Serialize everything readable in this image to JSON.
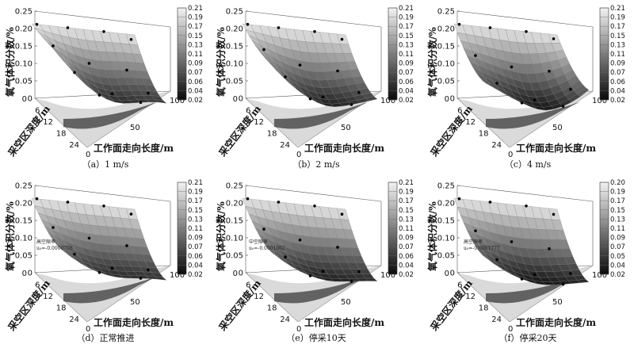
{
  "chart_data": [
    {
      "type": "surface3d",
      "caption": "（a）1 m/s",
      "zlabel": "氧气体积分数/%",
      "xlabel": "工作面走向长度/m",
      "ylabel": "采空区深度/m",
      "z_ticks": [
        "0",
        "0.05",
        "0.10",
        "0.15",
        "0.20",
        "0.25"
      ],
      "z_range": [
        0,
        0.25
      ],
      "x_ticks": [
        "0",
        "50",
        "100"
      ],
      "y_ticks": [
        "0",
        "6",
        "12",
        "18",
        "24"
      ],
      "colorbar_ticks": [
        "0.21",
        "0.19",
        "0.17",
        "0.15",
        "0.13",
        "0.11",
        "0.09",
        "0.07",
        "0.06",
        "0.04",
        "0.02"
      ],
      "annotation": [],
      "surface": {
        "z_near": 0.205,
        "z_far_left": 0.16,
        "z_min": 0.04,
        "z_far_right": 0.06
      }
    },
    {
      "type": "surface3d",
      "caption": "（b）2 m/s",
      "zlabel": "氧气体积分数/%",
      "xlabel": "工作面走向长度/m",
      "ylabel": "采空区深度/m",
      "z_ticks": [
        "0",
        "0.05",
        "0.10",
        "0.15",
        "0.20",
        "0.25"
      ],
      "z_range": [
        0,
        0.25
      ],
      "x_ticks": [
        "0",
        "50",
        "100"
      ],
      "y_ticks": [
        "0",
        "6",
        "12",
        "18",
        "24"
      ],
      "colorbar_ticks": [
        "0.21",
        "0.19",
        "0.17",
        "0.15",
        "0.13",
        "0.11",
        "0.09",
        "0.07",
        "0.06",
        "0.04",
        "0.02"
      ],
      "annotation": [],
      "surface": {
        "z_near": 0.205,
        "z_far_left": 0.13,
        "z_min": 0.03,
        "z_far_right": 0.08
      }
    },
    {
      "type": "surface3d",
      "caption": "（c）4 m/s",
      "zlabel": "氧气体积分数/%",
      "xlabel": "工作面走向长度/m",
      "ylabel": "采空区深度/m",
      "z_ticks": [
        "0",
        "0.05",
        "0.10",
        "0.15",
        "0.20",
        "0.25"
      ],
      "z_range": [
        0,
        0.25
      ],
      "x_ticks": [
        "0",
        "50",
        "100"
      ],
      "y_ticks": [
        "0",
        "6",
        "12",
        "18",
        "24"
      ],
      "colorbar_ticks": [
        "0.21",
        "0.19",
        "0.17",
        "0.15",
        "0.13",
        "0.11",
        "0.09",
        "0.07",
        "0.06",
        "0.04",
        "0.02"
      ],
      "annotation": [],
      "surface": {
        "z_near": 0.205,
        "z_far_left": 0.08,
        "z_min": 0.02,
        "z_far_right": 0.12
      }
    },
    {
      "type": "surface3d",
      "caption": "（d）正常推进",
      "zlabel": "氧气体积分数/%",
      "xlabel": "工作面走向长度/m",
      "ylabel": "采空区深度/m",
      "z_ticks": [
        "0",
        "0.05",
        "0.10",
        "0.15",
        "0.20",
        "0.25"
      ],
      "z_range": [
        0,
        0.25
      ],
      "x_ticks": [
        "0",
        "50",
        "100"
      ],
      "y_ticks": [
        "0",
        "6",
        "12",
        "18",
        "24"
      ],
      "colorbar_ticks": [
        "0.21",
        "0.19",
        "0.17",
        "0.15",
        "0.13",
        "0.11",
        "0.09",
        "0.07",
        "0.06",
        "0.04",
        "0.02"
      ],
      "annotation": [
        "高空隙率",
        "u₀=-0.0000708"
      ],
      "surface": {
        "z_near": 0.205,
        "z_far_left": 0.1,
        "z_min": 0.04,
        "z_far_right": 0.05
      }
    },
    {
      "type": "surface3d",
      "caption": "（e）停采10天",
      "zlabel": "氧气体积分数/%",
      "xlabel": "工作面走向长度/m",
      "ylabel": "采空区深度/m",
      "z_ticks": [
        "0",
        "0.05",
        "0.10",
        "0.15",
        "0.20",
        "0.25"
      ],
      "z_range": [
        0,
        0.25
      ],
      "x_ticks": [
        "0",
        "50",
        "100"
      ],
      "y_ticks": [
        "0",
        "6",
        "12",
        "18",
        "24"
      ],
      "colorbar_ticks": [
        "0.21",
        "0.19",
        "0.17",
        "0.15",
        "0.13",
        "0.11",
        "0.09",
        "0.07",
        "0.06",
        "0.04",
        "0.02"
      ],
      "annotation": [
        "中空隙率",
        "u₀=-0.0001062"
      ],
      "surface": {
        "z_near": 0.205,
        "z_far_left": 0.09,
        "z_min": 0.03,
        "z_far_right": 0.05
      }
    },
    {
      "type": "surface3d",
      "caption": "（f）停采20天",
      "zlabel": "氧气体积分数/%",
      "xlabel": "工作面走向长度/m",
      "ylabel": "采空区深度/m",
      "z_ticks": [
        "0",
        "0.05",
        "0.10",
        "0.15",
        "0.20",
        "0.25"
      ],
      "z_range": [
        0,
        0.25
      ],
      "x_ticks": [
        "0",
        "50",
        "100"
      ],
      "y_ticks": [
        "0",
        "6",
        "12",
        "18",
        "24"
      ],
      "colorbar_ticks": [
        "0.20",
        "0.19",
        "0.17",
        "0.15",
        "0.13",
        "0.11",
        "0.09",
        "0.07",
        "0.05",
        "0.04",
        "0.02"
      ],
      "annotation": [
        "高空隙率",
        "u₀=-0.0001777"
      ],
      "surface": {
        "z_near": 0.205,
        "z_far_left": 0.08,
        "z_min": 0.02,
        "z_far_right": 0.05
      }
    }
  ]
}
